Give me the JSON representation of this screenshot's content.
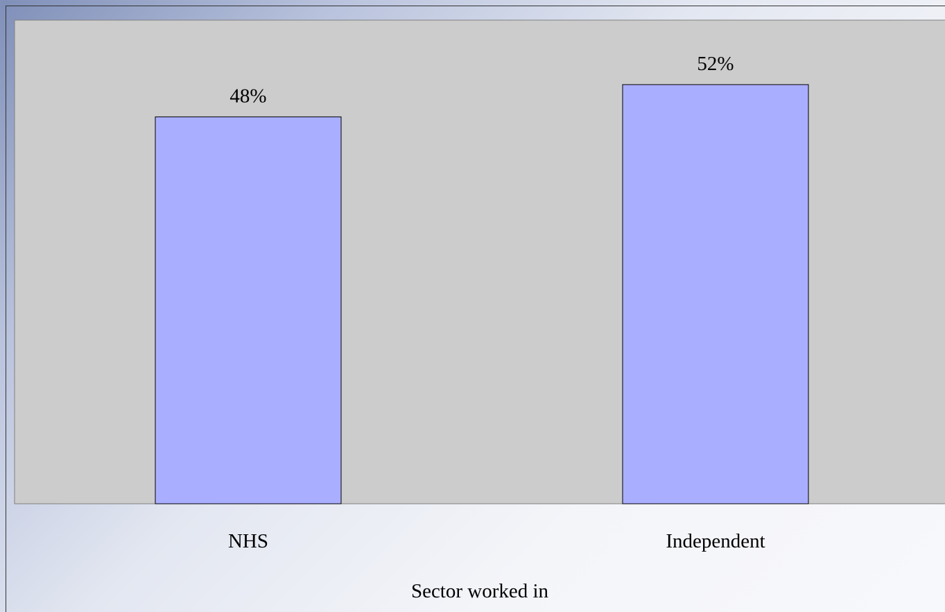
{
  "chart_data": {
    "type": "bar",
    "categories": [
      "NHS",
      "Independent"
    ],
    "values": [
      48,
      52
    ],
    "value_labels": [
      "48%",
      "52%"
    ],
    "title": "",
    "xlabel": "Sector worked in",
    "ylabel": "",
    "ylim": [
      0,
      60
    ],
    "grid": false,
    "legend": "none",
    "colors": {
      "bar_fill": "#aaaeff",
      "bar_stroke": "#000000",
      "plot_background": "#cccccc",
      "plot_border": "#808080"
    }
  }
}
